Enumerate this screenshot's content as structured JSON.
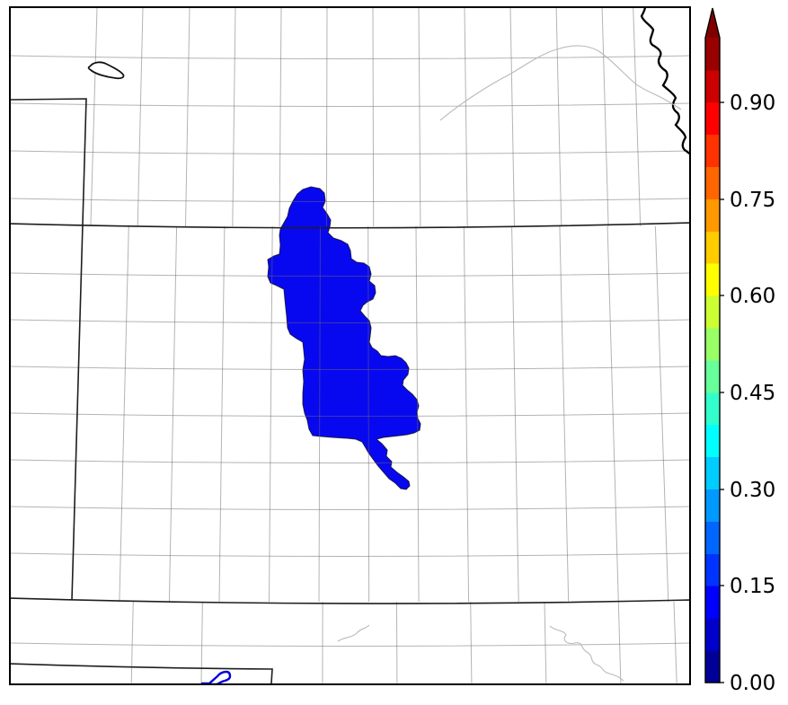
{
  "figure": {
    "kind": "choropleth-county-map-with-colorbar",
    "background_color": "#ffffff"
  },
  "colorbar": {
    "orientation": "vertical",
    "range_min": 0.0,
    "range_max": 1.0,
    "extend": "max",
    "arrow_color": "#800000",
    "outline_color": "#000000",
    "tick_color": "#000000",
    "label_color": "#000000",
    "ticks": [
      {
        "label": "0.90",
        "value": 0.9
      },
      {
        "label": "0.75",
        "value": 0.75
      },
      {
        "label": "0.60",
        "value": 0.6
      },
      {
        "label": "0.45",
        "value": 0.45
      },
      {
        "label": "0.30",
        "value": 0.3
      },
      {
        "label": "0.15",
        "value": 0.15
      },
      {
        "label": "0.00",
        "value": 0.0
      }
    ],
    "segment_step": 0.05,
    "segment_colors_bottom_to_top": [
      "#000099",
      "#0000CC",
      "#0000FF",
      "#0033FF",
      "#0066FF",
      "#0099FF",
      "#00CCFF",
      "#00FFFF",
      "#33FFCC",
      "#66FF99",
      "#99FF66",
      "#CCFF33",
      "#FFFF00",
      "#FFCC00",
      "#FF9900",
      "#FF6600",
      "#FF3300",
      "#FF0000",
      "#CC0000",
      "#990000"
    ]
  },
  "map": {
    "frame_color": "#000000",
    "county_line_color": "rgba(105,105,105,0.5)",
    "state_line_color": "#1e1e1e",
    "major_river_color": "#000000",
    "minor_river_color": "#b9b9b9",
    "watershed_fill": "#0808F0",
    "watershed_outline": "rgba(15,15,50,0.85)",
    "lake_outline_color": "#111111",
    "reservoir_outline_color": "#0000d8"
  }
}
